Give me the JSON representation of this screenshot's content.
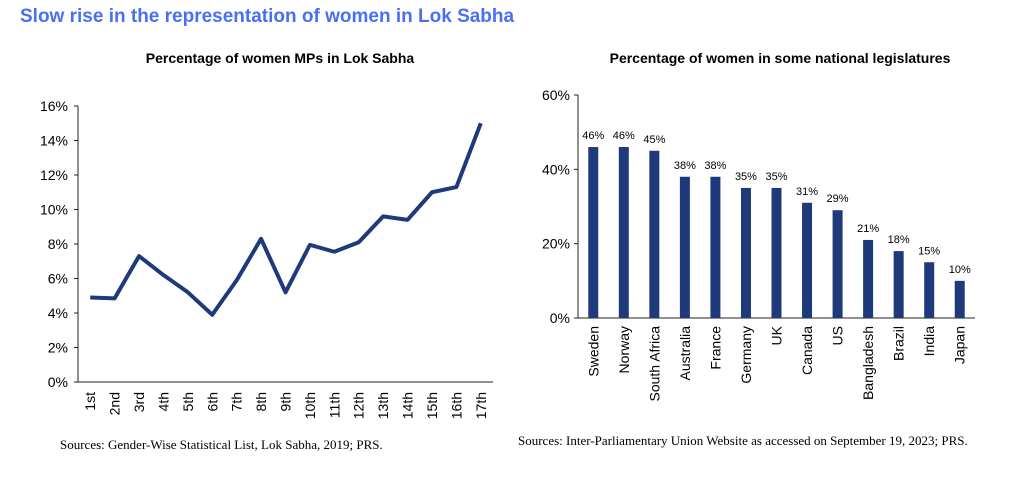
{
  "title": "Slow rise in the representation of women in Lok Sabha",
  "sources": {
    "left": "Sources: Gender-Wise Statistical List, Lok Sabha, 2019; PRS.",
    "right": "Sources: Inter-Parliamentary Union Website as accessed on September 19, 2023; PRS."
  },
  "colors": {
    "series": "#1f3a7a",
    "title": "#4a6ef5"
  },
  "chart_data": [
    {
      "type": "line",
      "title": "Percentage of women MPs in Lok Sabha",
      "categories": [
        "1st",
        "2nd",
        "3rd",
        "4th",
        "5th",
        "6th",
        "7th",
        "8th",
        "9th",
        "10th",
        "11th",
        "12th",
        "13th",
        "14th",
        "15th",
        "16th",
        "17th"
      ],
      "values": [
        4.9,
        4.85,
        7.3,
        6.2,
        5.2,
        3.9,
        5.9,
        8.3,
        5.2,
        7.95,
        7.55,
        8.1,
        9.6,
        9.4,
        11.0,
        11.3,
        15.0
      ],
      "ylim": [
        0,
        16
      ],
      "yticks": [
        "0%",
        "2%",
        "4%",
        "6%",
        "8%",
        "10%",
        "12%",
        "14%",
        "16%"
      ],
      "grid": false
    },
    {
      "type": "bar",
      "title": "Percentage of women in some national legislatures",
      "categories": [
        "Sweden",
        "Norway",
        "South Africa",
        "Australia",
        "France",
        "Germany",
        "UK",
        "Canada",
        "US",
        "Bangladesh",
        "Brazil",
        "India",
        "Japan"
      ],
      "values": [
        46,
        46,
        45,
        38,
        38,
        35,
        35,
        31,
        29,
        21,
        18,
        15,
        10
      ],
      "labels": [
        "46%",
        "46%",
        "45%",
        "38%",
        "38%",
        "35%",
        "35%",
        "31%",
        "29%",
        "21%",
        "18%",
        "15%",
        "10%"
      ],
      "ylim": [
        0,
        60
      ],
      "yticks": [
        "0%",
        "20%",
        "40%",
        "60%"
      ],
      "grid": false
    }
  ]
}
